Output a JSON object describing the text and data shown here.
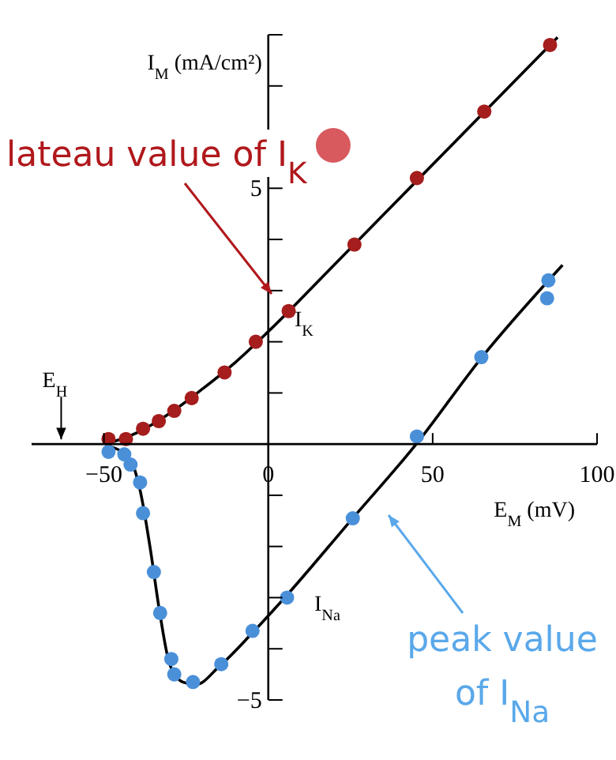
{
  "chart_data": {
    "type": "scatter",
    "xlabel": "E$_{M}$ (mV)",
    "ylabel": "I$_{M}$ (mA/cm²)",
    "xlim": [
      -72,
      100
    ],
    "ylim": [
      -5,
      8
    ],
    "xticks": [
      {
        "value": -50,
        "label": "−50"
      },
      0,
      50,
      100
    ],
    "yticks": [
      {
        "value": -5,
        "label": "−5"
      },
      {
        "value": -4,
        "label": null
      },
      {
        "value": -3,
        "label": null
      },
      {
        "value": -2,
        "label": null
      },
      {
        "value": -1,
        "label": null
      },
      {
        "value": 1,
        "label": null
      },
      {
        "value": 2,
        "label": null
      },
      {
        "value": 3,
        "label": null
      },
      {
        "value": 4,
        "label": null
      },
      5,
      {
        "value": 7,
        "label": null
      },
      {
        "value": 8,
        "label": null
      }
    ],
    "marker": "circle",
    "series": [
      {
        "name": "I$_{K}$",
        "color": "#a51d1d",
        "x": [
          -48.6,
          -43.3,
          -38.1,
          -33.3,
          -28.6,
          -23.3,
          -13.3,
          -3.8,
          6.2,
          26.2,
          45.2,
          65.7,
          85.7
        ],
        "values": [
          0.1,
          0.1,
          0.3,
          0.45,
          0.65,
          0.9,
          1.4,
          2.0,
          2.6,
          3.9,
          5.2,
          6.5,
          7.8
        ]
      },
      {
        "name": "I$_{Na}$",
        "color": "#4a90d9",
        "x": [
          -48.6,
          -43.8,
          -41.9,
          -39,
          -38.1,
          -34.8,
          -32.9,
          -29.5,
          -28.6,
          -22.9,
          -14.3,
          -4.8,
          5.7,
          25.7,
          45.2,
          64.8,
          84.8,
          85.2
        ],
        "values": [
          -0.15,
          -0.2,
          -0.4,
          -0.75,
          -1.35,
          -2.5,
          -3.3,
          -4.2,
          -4.5,
          -4.65,
          -4.3,
          -3.65,
          -3.0,
          -1.45,
          0.15,
          1.7,
          2.85,
          3.2
        ]
      },
      {
        "type": "line",
        "marker": "none",
        "color": "#000000",
        "x": [
          -49.5,
          -40,
          -30,
          -20,
          -10,
          0,
          20,
          88
        ],
        "values": [
          0,
          0.22,
          0.6,
          1.08,
          1.6,
          2.2,
          3.5,
          7.95
        ]
      },
      {
        "type": "line",
        "marker": "none",
        "color": "#000000",
        "x": [
          -48,
          -42,
          -39,
          -36,
          -33,
          -30,
          -26,
          -22,
          -15,
          -5,
          5,
          25,
          45,
          65,
          89.5
        ],
        "values": [
          -0.05,
          -0.3,
          -0.9,
          -2,
          -3.3,
          -4.3,
          -4.65,
          -4.7,
          -4.35,
          -3.7,
          -3.0,
          -1.5,
          0,
          1.7,
          3.5
        ]
      }
    ],
    "annotations": [
      "lateau value of I$_{K}$",
      "peak value of I$_{Na}$",
      "E$_{H}$"
    ]
  }
}
